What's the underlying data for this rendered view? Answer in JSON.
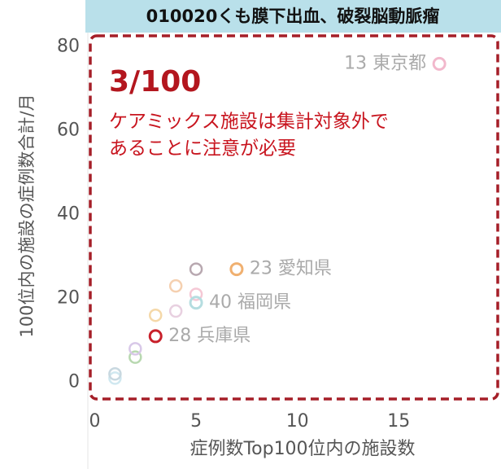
{
  "chart_data": {
    "type": "scatter",
    "title": "010020くも膜下出血、破裂脳動脈瘤",
    "x_label": "症例数Top100位内の施設数",
    "y_label": "100位内の施設の症例数合計/月",
    "annotation": {
      "title": "3/100",
      "lines": [
        "ケアミックス施設は集計対象外で",
        "あることに注意が必要"
      ]
    },
    "xlim": [
      -0.5,
      19
    ],
    "xticks": [
      0,
      5,
      10,
      15
    ],
    "ylim": [
      -3,
      85
    ],
    "yticks": [
      0,
      20,
      40,
      60,
      80
    ],
    "points": [
      {
        "x": 17,
        "y": 76,
        "color": "#f2b8cc",
        "label": "13 東京都"
      },
      {
        "x": 7,
        "y": 27,
        "color": "#f0b070",
        "label": "23 愛知県"
      },
      {
        "x": 5,
        "y": 19,
        "color": "#b5dde0",
        "label": "40 福岡県"
      },
      {
        "x": 3,
        "y": 11,
        "color": "#c8202a",
        "label": "28 兵庫県"
      },
      {
        "x": 5,
        "y": 27,
        "color": "#b8a8b0"
      },
      {
        "x": 4,
        "y": 23,
        "color": "#f5d0b0"
      },
      {
        "x": 5,
        "y": 21,
        "color": "#f5c8d5"
      },
      {
        "x": 4,
        "y": 17,
        "color": "#e8d0e0"
      },
      {
        "x": 3,
        "y": 16,
        "color": "#f5d8a8"
      },
      {
        "x": 2,
        "y": 8,
        "color": "#d8c8e8"
      },
      {
        "x": 2,
        "y": 6,
        "color": "#b8d8b0"
      },
      {
        "x": 1,
        "y": 2,
        "color": "#c8d8e0"
      },
      {
        "x": 1,
        "y": 1,
        "color": "#d0e8f0"
      }
    ]
  }
}
